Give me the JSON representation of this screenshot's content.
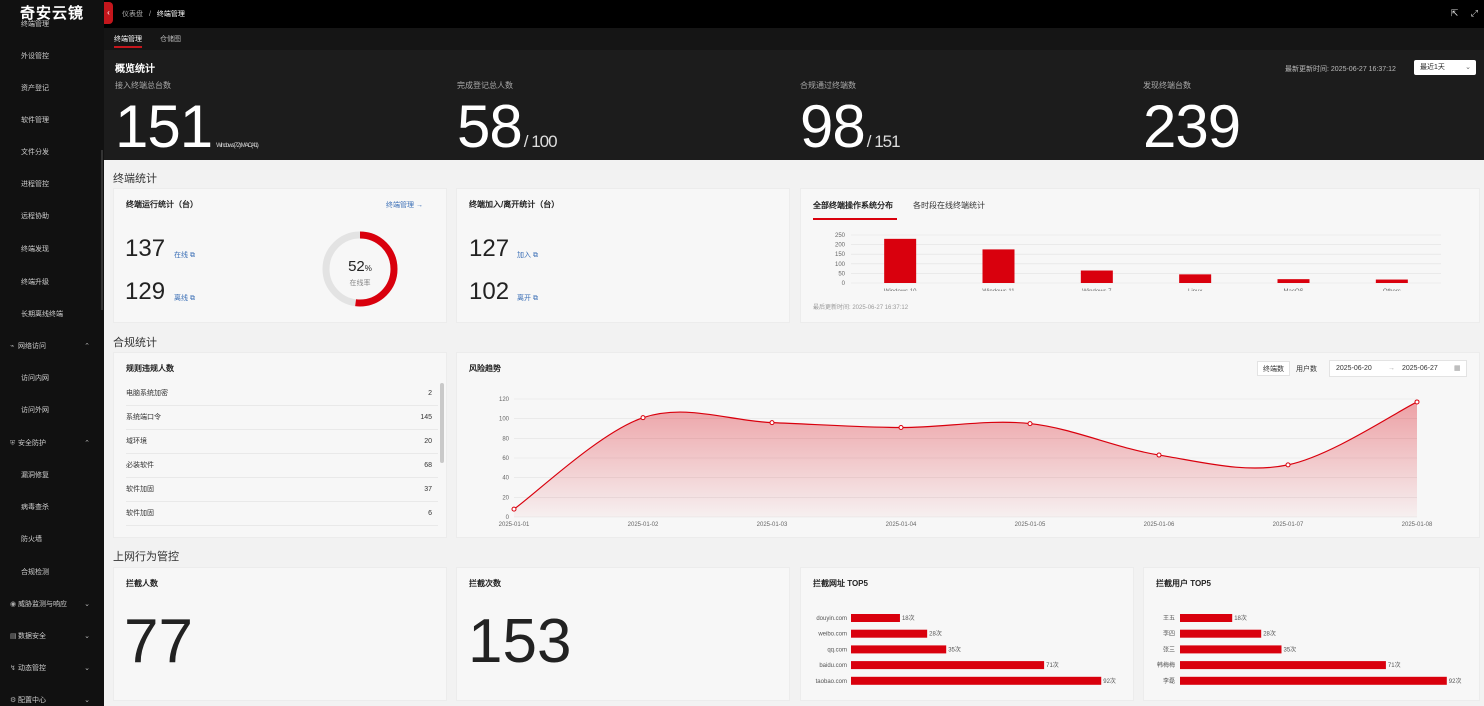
{
  "app": {
    "logo": "奇安云镜"
  },
  "sidebar": {
    "items": [
      {
        "label": "终端管理",
        "type": "sub"
      },
      {
        "label": "外设管控",
        "type": "sub"
      },
      {
        "label": "资产登记",
        "type": "sub"
      },
      {
        "label": "软件管理",
        "type": "sub"
      },
      {
        "label": "文件分发",
        "type": "sub"
      },
      {
        "label": "进程管控",
        "type": "sub"
      },
      {
        "label": "远程协助",
        "type": "sub"
      },
      {
        "label": "终端发现",
        "type": "sub"
      },
      {
        "label": "终端升级",
        "type": "sub"
      },
      {
        "label": "长期离线终端",
        "type": "sub"
      },
      {
        "label": "网络访问",
        "type": "group"
      },
      {
        "label": "访问内网",
        "type": "sub"
      },
      {
        "label": "访问外网",
        "type": "sub"
      },
      {
        "label": "安全防护",
        "type": "group"
      },
      {
        "label": "漏洞修复",
        "type": "sub"
      },
      {
        "label": "病毒查杀",
        "type": "sub"
      },
      {
        "label": "防火墙",
        "type": "sub"
      },
      {
        "label": "合规检测",
        "type": "sub"
      },
      {
        "label": "威胁监测与响应",
        "type": "group"
      },
      {
        "label": "数据安全",
        "type": "group"
      },
      {
        "label": "动态管控",
        "type": "group"
      },
      {
        "label": "配置中心",
        "type": "group"
      }
    ]
  },
  "topbar": {
    "breadcrumb_root": "仪表盘",
    "breadcrumb_sep": "/",
    "breadcrumb_current": "终端管理"
  },
  "tabs": [
    {
      "label": "终端管理"
    },
    {
      "label": "仓储图"
    }
  ],
  "overview": {
    "title": "概览统计",
    "updated_label": "最新更新时间:",
    "updated_time": "2025-06-27 16:37:12",
    "range": "最近1天",
    "stats": [
      {
        "label": "接入终端总台数",
        "value": "151",
        "suffix": "Windows(72) MAC(41)"
      },
      {
        "label": "完成登记总人数",
        "value": "58",
        "suffix": "/ 100"
      },
      {
        "label": "合规通过终端数",
        "value": "98",
        "suffix": "/ 151"
      },
      {
        "label": "发现终端台数",
        "value": "239",
        "suffix": ""
      }
    ]
  },
  "terminal": {
    "section_title": "终端统计",
    "run": {
      "title": "终端运行统计（台）",
      "manage_link": "终端管理 →",
      "online_value": "137",
      "online_label": "在线",
      "offline_value": "129",
      "offline_label": "离线",
      "rate_value": "52",
      "rate_unit": "%",
      "rate_label": "在线率",
      "rate": 52
    },
    "join": {
      "title": "终端加入/离开统计（台）",
      "join_value": "127",
      "join_label": "加入",
      "leave_value": "102",
      "leave_label": "离开"
    },
    "os": {
      "tab_active": "全部终端操作系统分布",
      "tab_other": "各时段在线终端统计",
      "updated_label": "最后更新时间:",
      "updated_time": "2025-06-27 16:37:12"
    }
  },
  "compliance": {
    "section_title": "合规统计",
    "violations": {
      "title": "规则违规人数",
      "rows": [
        {
          "label": "电脑系统加密",
          "value": "2"
        },
        {
          "label": "系统端口令",
          "value": "145"
        },
        {
          "label": "域环境",
          "value": "20"
        },
        {
          "label": "必装软件",
          "value": "68"
        },
        {
          "label": "软件加固",
          "value": "37"
        },
        {
          "label": "软件加固",
          "value": "6"
        }
      ]
    },
    "risk": {
      "title": "风险趋势",
      "btn_terminal": "终端数",
      "btn_user": "用户数",
      "date_from": "2025-06-20",
      "date_sep": "→",
      "date_to": "2025-06-27"
    }
  },
  "web": {
    "section_title": "上网行为管控",
    "blocked_people": {
      "title": "拦截人数",
      "value": "77"
    },
    "blocked_times": {
      "title": "拦截次数",
      "value": "153"
    },
    "top_sites_title": "拦截网址 TOP5",
    "top_users_title": "拦截用户 TOP5"
  },
  "colors": {
    "accent": "#d9000d",
    "sidebar_bg": "#111111",
    "overview_bg": "#1c1c1c"
  },
  "chart_data": [
    {
      "type": "bar",
      "categories": [
        "Windows 10",
        "Windows 11",
        "Windows 7",
        "Linux",
        "MacOS",
        "Others"
      ],
      "values": [
        230,
        175,
        65,
        45,
        20,
        18
      ],
      "ylim": [
        0,
        250
      ],
      "yticks": [
        0,
        50,
        100,
        150,
        200,
        250
      ],
      "grid": true
    },
    {
      "type": "area",
      "x": [
        "2025-01-01",
        "2025-01-02",
        "2025-01-03",
        "2025-01-04",
        "2025-01-05",
        "2025-01-06",
        "2025-01-07",
        "2025-01-08"
      ],
      "values": [
        8,
        101,
        96,
        91,
        95,
        63,
        53,
        117
      ],
      "ylim": [
        0,
        120
      ],
      "yticks": [
        0,
        20,
        40,
        60,
        80,
        100,
        120
      ],
      "grid": true
    },
    {
      "type": "bar",
      "orientation": "horizontal",
      "categories": [
        "douyin.com",
        "weibo.com",
        "qq.com",
        "baidu.com",
        "taobao.com"
      ],
      "values": [
        18,
        28,
        35,
        71,
        92
      ],
      "value_suffix": "次"
    },
    {
      "type": "bar",
      "orientation": "horizontal",
      "categories": [
        "王五",
        "李四",
        "张三",
        "韩梅梅",
        "李磊"
      ],
      "values": [
        18,
        28,
        35,
        71,
        92
      ],
      "value_suffix": "次"
    }
  ]
}
